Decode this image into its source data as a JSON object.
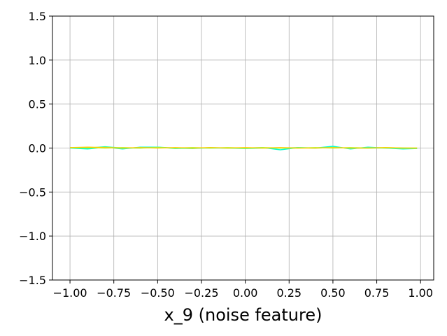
{
  "chart_data": {
    "type": "line",
    "title": "",
    "xlabel": "x_9 (noise feature)",
    "ylabel": "",
    "xlim": [
      -1.1,
      1.075
    ],
    "ylim": [
      -1.5,
      1.5
    ],
    "grid": true,
    "xticks": [
      -1.0,
      -0.75,
      -0.5,
      -0.25,
      0.0,
      0.25,
      0.5,
      0.75,
      1.0
    ],
    "xtick_labels": [
      "−1.00",
      "−0.75",
      "−0.50",
      "−0.25",
      "0.00",
      "0.25",
      "0.50",
      "0.75",
      "1.00"
    ],
    "yticks": [
      -1.5,
      -1.0,
      -0.5,
      0.0,
      0.5,
      1.0,
      1.5
    ],
    "ytick_labels": [
      "−1.5",
      "−1.0",
      "−0.5",
      "0.0",
      "0.5",
      "1.0",
      "1.5"
    ],
    "x": [
      -1.0,
      -0.9,
      -0.8,
      -0.7,
      -0.6,
      -0.5,
      -0.4,
      -0.3,
      -0.2,
      -0.1,
      0.0,
      0.1,
      0.2,
      0.3,
      0.4,
      0.5,
      0.6,
      0.7,
      0.8,
      0.9,
      0.98
    ],
    "series": [
      {
        "color": "#00ffcc",
        "values": [
          0.0,
          -0.01,
          0.01,
          -0.01,
          0.01,
          0.01,
          -0.005,
          0.0,
          0.0,
          0.0,
          0.0,
          0.005,
          -0.02,
          0.005,
          0.0,
          0.02,
          -0.01,
          0.01,
          0.0,
          -0.01,
          -0.005
        ]
      },
      {
        "color": "#33ff99",
        "values": [
          0.005,
          0.0,
          0.015,
          0.0,
          0.0,
          0.01,
          0.0,
          -0.005,
          0.005,
          0.0,
          -0.005,
          0.0,
          0.0,
          0.005,
          0.0,
          0.005,
          0.0,
          0.0,
          0.0,
          0.0,
          -0.005
        ]
      },
      {
        "color": "#99ff33",
        "values": [
          0.005,
          0.005,
          0.0,
          0.005,
          0.0,
          0.005,
          0.0,
          0.005,
          0.0,
          0.005,
          0.0,
          0.005,
          0.0,
          0.0,
          0.005,
          0.0,
          0.005,
          0.0,
          0.005,
          0.0,
          0.0
        ]
      },
      {
        "color": "#ffcc00",
        "values": [
          0.005,
          0.01,
          0.005,
          0.0,
          0.005,
          0.0,
          0.005,
          0.0,
          0.005,
          0.0,
          0.005,
          0.0,
          0.005,
          0.0,
          0.0,
          0.005,
          0.0,
          0.0,
          0.005,
          0.0,
          0.0
        ]
      }
    ]
  }
}
